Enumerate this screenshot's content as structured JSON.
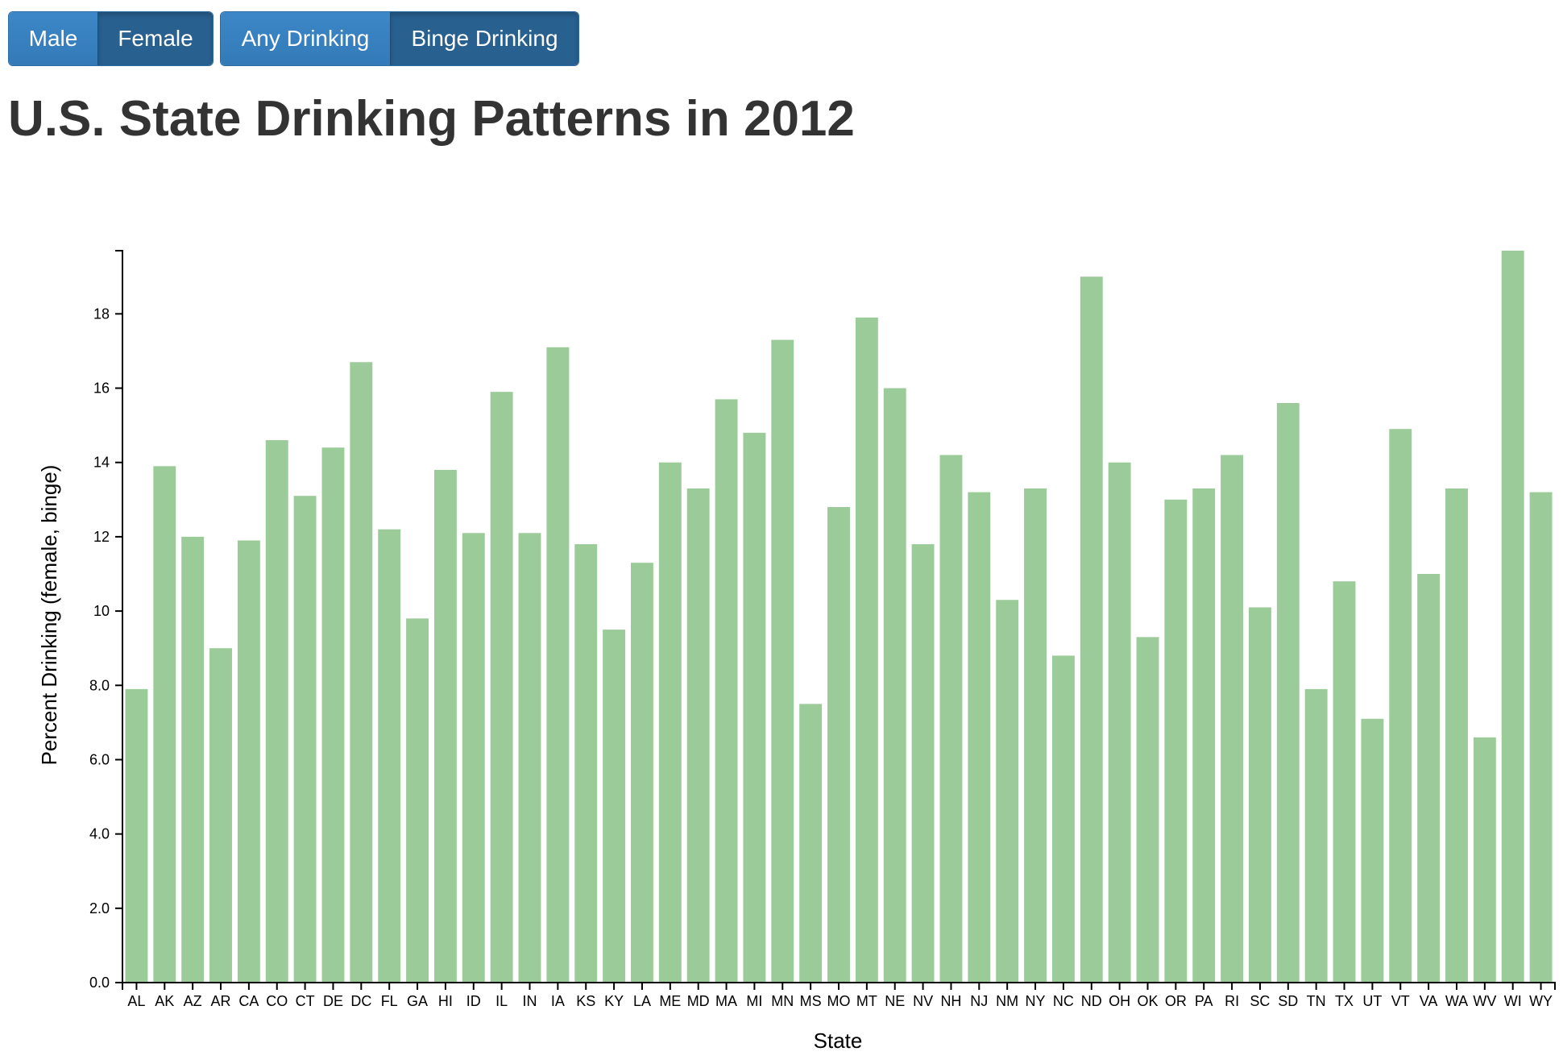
{
  "controls": {
    "sex_buttons": [
      {
        "label": "Male",
        "active": false
      },
      {
        "label": "Female",
        "active": true
      }
    ],
    "drinking_buttons": [
      {
        "label": "Any Drinking",
        "active": false
      },
      {
        "label": "Binge Drinking",
        "active": true
      }
    ]
  },
  "page": {
    "title": "U.S. State Drinking Patterns in 2012"
  },
  "colors": {
    "bar": "#9bcb98",
    "button": "#337ab7",
    "button_active": "#286090",
    "title_text": "#333333"
  },
  "chart_data": {
    "type": "bar",
    "title": "U.S. State Drinking Patterns in 2012",
    "xlabel": "State",
    "ylabel": "Percent Drinking (female, binge)",
    "ylim": [
      0,
      19.7
    ],
    "yticks": [
      "0.0",
      "2.0",
      "4.0",
      "6.0",
      "8.0",
      "10",
      "12",
      "14",
      "16",
      "18"
    ],
    "grid": false,
    "categories": [
      "AL",
      "AK",
      "AZ",
      "AR",
      "CA",
      "CO",
      "CT",
      "DE",
      "DC",
      "FL",
      "GA",
      "HI",
      "ID",
      "IL",
      "IN",
      "IA",
      "KS",
      "KY",
      "LA",
      "ME",
      "MD",
      "MA",
      "MI",
      "MN",
      "MS",
      "MO",
      "MT",
      "NE",
      "NV",
      "NH",
      "NJ",
      "NM",
      "NY",
      "NC",
      "ND",
      "OH",
      "OK",
      "OR",
      "PA",
      "RI",
      "SC",
      "SD",
      "TN",
      "TX",
      "UT",
      "VT",
      "VA",
      "WA",
      "WV",
      "WI",
      "WY"
    ],
    "values": [
      7.9,
      13.9,
      12.0,
      9.0,
      11.9,
      14.6,
      13.1,
      14.4,
      16.7,
      12.2,
      9.8,
      13.8,
      12.1,
      15.9,
      12.1,
      17.1,
      11.8,
      9.5,
      11.3,
      14.0,
      13.3,
      15.7,
      14.8,
      17.3,
      7.5,
      12.8,
      17.9,
      16.0,
      11.8,
      14.2,
      13.2,
      10.3,
      13.3,
      8.8,
      19.0,
      14.0,
      9.3,
      13.0,
      13.3,
      14.2,
      10.1,
      15.6,
      7.9,
      10.8,
      7.1,
      14.9,
      11.0,
      13.3,
      6.6,
      19.7,
      13.2
    ]
  }
}
